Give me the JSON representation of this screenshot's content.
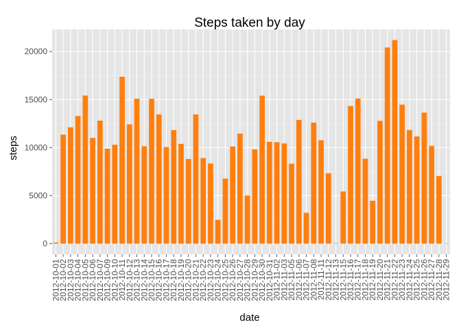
{
  "chart_data": {
    "type": "bar",
    "title": "Steps taken by day",
    "xlabel": "date",
    "ylabel": "steps",
    "ylim": [
      -1100,
      22300
    ],
    "yticks": [
      0,
      5000,
      10000,
      15000,
      20000
    ],
    "grid": true,
    "legend": "none",
    "colors": {
      "bar": "#ff7f0e",
      "panel": "#e5e5e5",
      "grid": "#ffffff"
    },
    "categories": [
      "2012-10-01",
      "2012-10-02",
      "2012-10-03",
      "2012-10-04",
      "2012-10-05",
      "2012-10-06",
      "2012-10-07",
      "2012-10-09",
      "2012-10-10",
      "2012-10-11",
      "2012-10-12",
      "2012-10-13",
      "2012-10-14",
      "2012-10-15",
      "2012-10-16",
      "2012-10-17",
      "2012-10-18",
      "2012-10-19",
      "2012-10-20",
      "2012-10-21",
      "2012-10-22",
      "2012-10-23",
      "2012-10-24",
      "2012-10-25",
      "2012-10-26",
      "2012-10-27",
      "2012-10-28",
      "2012-10-29",
      "2012-10-30",
      "2012-10-31",
      "2012-11-02",
      "2012-11-03",
      "2012-11-05",
      "2012-11-06",
      "2012-11-07",
      "2012-11-08",
      "2012-11-11",
      "2012-11-12",
      "2012-11-13",
      "2012-11-15",
      "2012-11-16",
      "2012-11-17",
      "2012-11-18",
      "2012-11-19",
      "2012-11-20",
      "2012-11-21",
      "2012-11-22",
      "2012-11-23",
      "2012-11-24",
      "2012-11-25",
      "2012-11-26",
      "2012-11-27",
      "2012-11-28",
      "2012-11-29"
    ],
    "values": [
      126,
      11352,
      12116,
      13294,
      15420,
      11015,
      12811,
      9900,
      10304,
      17382,
      12426,
      15098,
      10139,
      15084,
      13452,
      10056,
      11829,
      10395,
      8821,
      13460,
      8918,
      8355,
      2492,
      6778,
      10119,
      11458,
      5018,
      9819,
      15414,
      10600,
      10571,
      10439,
      8334,
      12883,
      3219,
      12608,
      10765,
      7336,
      41,
      5441,
      14339,
      15110,
      8841,
      4472,
      12787,
      20427,
      21194,
      14478,
      11834,
      11162,
      13646,
      10183,
      7047,
      0
    ]
  }
}
